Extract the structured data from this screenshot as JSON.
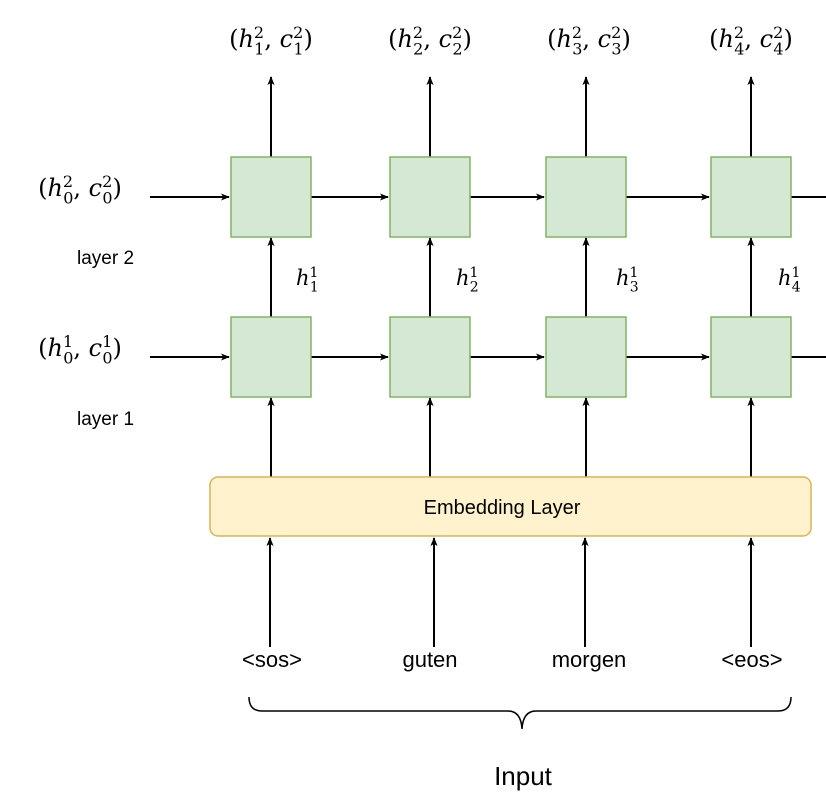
{
  "colors": {
    "cell_fill": "#d5e8d4",
    "cell_stroke": "#82b366",
    "embedding_fill": "#fff2cc",
    "embedding_stroke": "#d6b656",
    "line": "#000000"
  },
  "top_outputs": [
    {
      "sup": "2",
      "sub": "1"
    },
    {
      "sup": "2",
      "sub": "2"
    },
    {
      "sup": "2",
      "sub": "3"
    },
    {
      "sup": "2",
      "sub": "4"
    }
  ],
  "initial_states": {
    "layer2": {
      "sup": "2",
      "sub": "0"
    },
    "layer1": {
      "sup": "1",
      "sub": "0"
    }
  },
  "layer_labels": {
    "layer2": "layer 2",
    "layer1": "layer 1"
  },
  "hidden_between": [
    {
      "sup": "1",
      "sub": "1"
    },
    {
      "sup": "1",
      "sub": "2"
    },
    {
      "sup": "1",
      "sub": "3"
    },
    {
      "sup": "1",
      "sub": "4"
    }
  ],
  "embedding_label": "Embedding Layer",
  "tokens": [
    "<sos>",
    "guten",
    "morgen",
    "<eos>"
  ],
  "input_label": "Input"
}
